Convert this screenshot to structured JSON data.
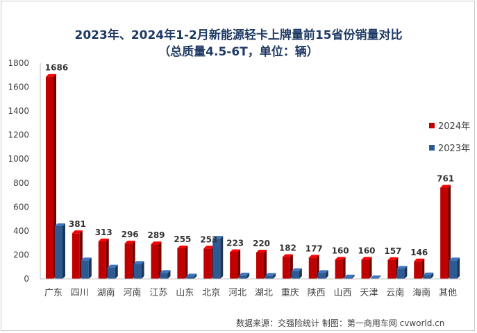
{
  "title": "2023年、2024年1-2月新能源轻卡上牌量前15省份销量对比",
  "subtitle": "（总质量4.5-6T，单位：辆）",
  "source": "数据来源：交强险统计 制图：第一商用车网 cvworld.cn",
  "colors": {
    "series_2024": "#c00000",
    "series_2023": "#2e5a94"
  },
  "chart_data": {
    "type": "bar",
    "categories": [
      "广东",
      "四川",
      "湖南",
      "河南",
      "江苏",
      "山东",
      "北京",
      "河北",
      "湖北",
      "重庆",
      "陕西",
      "山西",
      "天津",
      "云南",
      "海南",
      "其他"
    ],
    "series": [
      {
        "name": "2024年",
        "values": [
          1686,
          381,
          313,
          296,
          289,
          255,
          253,
          223,
          220,
          182,
          177,
          160,
          160,
          157,
          146,
          761
        ]
      },
      {
        "name": "2023年",
        "values": [
          440,
          155,
          95,
          125,
          50,
          20,
          335,
          28,
          25,
          65,
          50,
          12,
          5,
          85,
          30,
          155
        ]
      }
    ],
    "data_labels": [
      "1686",
      "381",
      "313",
      "296",
      "289",
      "255",
      "253",
      "223",
      "220",
      "182",
      "177",
      "160",
      "160",
      "157",
      "146",
      "761"
    ],
    "yticks": [
      0,
      200,
      400,
      600,
      800,
      1000,
      1200,
      1400,
      1600,
      1800
    ],
    "ylim": [
      0,
      1800
    ],
    "grid": false,
    "legend_position": "right"
  }
}
